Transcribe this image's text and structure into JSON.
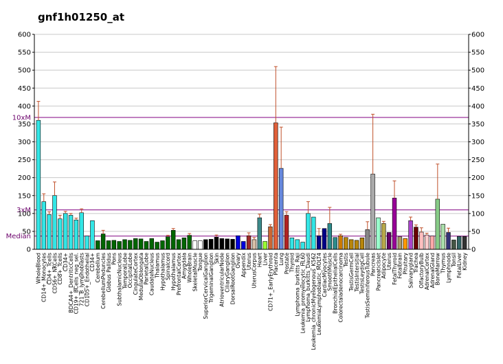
{
  "chart_data": {
    "type": "bar",
    "title": "gnf1h01250_at",
    "ylim": [
      0,
      600
    ],
    "y_ticks": [
      0,
      50,
      100,
      150,
      200,
      250,
      300,
      350,
      400,
      450,
      500,
      550,
      600
    ],
    "grid": true,
    "reference_lines": [
      {
        "label": "10xM",
        "value": 368
      },
      {
        "label": "3xM",
        "value": 110
      },
      {
        "label": "Median",
        "value": 37
      }
    ],
    "bars": [
      {
        "label": "WholeBlood",
        "value": 360,
        "err": 53,
        "color": "#33e6e6"
      },
      {
        "label": "CD14+_Monocytes",
        "value": 133,
        "err": 22,
        "color": "#33e6e6"
      },
      {
        "label": "CD4+_Tcells",
        "value": 97,
        "err": 8,
        "color": "#33e6e6"
      },
      {
        "label": "CD56+_NKCells",
        "value": 150,
        "err": 38,
        "color": "#33e6e6"
      },
      {
        "label": "CD8+_Tcells",
        "value": 85,
        "err": 10,
        "color": "#33e6e6"
      },
      {
        "label": "CD34+",
        "value": 100,
        "err": 6,
        "color": "#33e6e6"
      },
      {
        "label": "BDCA4+_DentriticCells",
        "value": 95,
        "err": 5,
        "color": "#33e6e6"
      },
      {
        "label": "CD19+_BCells_neg_sel.",
        "value": 82,
        "err": 5,
        "color": "#33e6e6"
      },
      {
        "label": "721_B_lymphoblasts",
        "value": 102,
        "err": 11,
        "color": "#33e6e6"
      },
      {
        "label": "CD105+_Endothelial",
        "value": 37,
        "err": 0,
        "color": "#33e6e6"
      },
      {
        "label": "CD34+",
        "value": 80,
        "err": 0,
        "color": "#33e6e6"
      },
      {
        "label": "Cerebellum",
        "value": 24,
        "err": 0,
        "color": "#006600"
      },
      {
        "label": "CerebellumPeduncles",
        "value": 43,
        "err": 10,
        "color": "#006600"
      },
      {
        "label": "Globus Pallidus",
        "value": 24,
        "err": 0,
        "color": "#006600"
      },
      {
        "label": "Pons",
        "value": 25,
        "err": 0,
        "color": "#006600"
      },
      {
        "label": "SubthalamicNucleus",
        "value": 22,
        "err": 0,
        "color": "#006600"
      },
      {
        "label": "TemporalLobe",
        "value": 27,
        "err": 0,
        "color": "#006600"
      },
      {
        "label": "OccipitalLobe",
        "value": 25,
        "err": 0,
        "color": "#006600"
      },
      {
        "label": "CingulateCortex",
        "value": 30,
        "err": 0,
        "color": "#006600"
      },
      {
        "label": "MedullaOblongata",
        "value": 29,
        "err": 0,
        "color": "#006600"
      },
      {
        "label": "ParietalLobe",
        "value": 22,
        "err": 0,
        "color": "#006600"
      },
      {
        "label": "CaudateNucleus",
        "value": 30,
        "err": 0,
        "color": "#006600"
      },
      {
        "label": "Thalamus",
        "value": 20,
        "err": 0,
        "color": "#006600"
      },
      {
        "label": "Hypothalamus",
        "value": 24,
        "err": 0,
        "color": "#006600"
      },
      {
        "label": "Spinalcord",
        "value": 35,
        "err": 4,
        "color": "#006600"
      },
      {
        "label": "Hypothalamus",
        "value": 53,
        "err": 5,
        "color": "#006600"
      },
      {
        "label": "PrefrontalCortex",
        "value": 27,
        "err": 0,
        "color": "#006600"
      },
      {
        "label": "Amygdala",
        "value": 32,
        "err": 0,
        "color": "#006600"
      },
      {
        "label": "WholeBrain",
        "value": 39,
        "err": 5,
        "color": "#006600"
      },
      {
        "label": "SkeletalMuscle",
        "value": 24,
        "err": 0,
        "color": "#ffffff"
      },
      {
        "label": "Tongue",
        "value": 24,
        "err": 0,
        "color": "#ffffff"
      },
      {
        "label": "SuperiorCervicalGanglion",
        "value": 27,
        "err": 0,
        "color": "#000000"
      },
      {
        "label": "TrigeminalGanglion",
        "value": 28,
        "err": 0,
        "color": "#000000"
      },
      {
        "label": "Skin",
        "value": 34,
        "err": 6,
        "color": "#000000"
      },
      {
        "label": "AtrioventricularNode",
        "value": 30,
        "err": 0,
        "color": "#000000"
      },
      {
        "label": "CiliaryGanglion",
        "value": 29,
        "err": 0,
        "color": "#000000"
      },
      {
        "label": "DorsalRootGanglion",
        "value": 28,
        "err": 0,
        "color": "#000000"
      },
      {
        "label": "Ovary",
        "value": 38,
        "err": 0,
        "color": "#0000dd"
      },
      {
        "label": "Appendix",
        "value": 22,
        "err": 0,
        "color": "#0000dd"
      },
      {
        "label": "Uterus",
        "value": 38,
        "err": 8,
        "color": "#9e2a2a"
      },
      {
        "label": "UterusCorpus",
        "value": 27,
        "err": 6,
        "color": "#d8c0a8"
      },
      {
        "label": "Heart",
        "value": 88,
        "err": 10,
        "color": "#3d8b8b"
      },
      {
        "label": "Liver",
        "value": 22,
        "err": 0,
        "color": "#99ff33"
      },
      {
        "label": "CD71+_EarlyErythroid",
        "value": 63,
        "err": 6,
        "color": "#cc6633"
      },
      {
        "label": "Placenta",
        "value": 353,
        "err": 157,
        "color": "#e0603a"
      },
      {
        "label": "Lung",
        "value": 226,
        "err": 115,
        "color": "#6688dd"
      },
      {
        "label": "Prostate",
        "value": 95,
        "err": 10,
        "color": "#b22222"
      },
      {
        "label": "Thyroid",
        "value": 32,
        "err": 0,
        "color": "#33e6e6"
      },
      {
        "label": "Lymphoma_burkitts_Raji",
        "value": 27,
        "err": 0,
        "color": "#33e6e6"
      },
      {
        "label": "Leukemia_promyelocytic_HL60",
        "value": 20,
        "err": 0,
        "color": "#33e6e6"
      },
      {
        "label": "Lymphoma_burkitts_Daudi",
        "value": 100,
        "err": 33,
        "color": "#33e6e6"
      },
      {
        "label": "Leukemia_chronicMyelogenous_K562",
        "value": 90,
        "err": 0,
        "color": "#33e6e6"
      },
      {
        "label": "LeukemiaLymphoblastic_MOLT4",
        "value": 38,
        "err": 20,
        "color": "#000088"
      },
      {
        "label": "CardiacMyocytes",
        "value": 58,
        "err": 0,
        "color": "#000088"
      },
      {
        "label": "SmoothMuscle",
        "value": 72,
        "err": 45,
        "color": "#2d8b8b"
      },
      {
        "label": "BronchialEpithelialCells",
        "value": 33,
        "err": 0,
        "color": "#2d8b8b"
      },
      {
        "label": "Colorectaladenocarcinoma",
        "value": 38,
        "err": 4,
        "color": "#cc7a00"
      },
      {
        "label": "Testis",
        "value": 33,
        "err": 0,
        "color": "#b8860b"
      },
      {
        "label": "TestisGermCell",
        "value": 27,
        "err": 0,
        "color": "#b8860b"
      },
      {
        "label": "TestisIntersitial",
        "value": 25,
        "err": 0,
        "color": "#b8860b"
      },
      {
        "label": "TestisLeydigCell",
        "value": 32,
        "err": 0,
        "color": "#b8860b"
      },
      {
        "label": "TestisSeminiferousTubule",
        "value": 55,
        "err": 22,
        "color": "#888888"
      },
      {
        "label": "Pancreas",
        "value": 210,
        "err": 167,
        "color": "#aaaaaa"
      },
      {
        "label": "PancreaticIslet",
        "value": 88,
        "err": 0,
        "color": "#99ffcc"
      },
      {
        "label": "Adipocyte",
        "value": 72,
        "err": 6,
        "color": "#b8a84a"
      },
      {
        "label": "Uterus",
        "value": 47,
        "err": 0,
        "color": "#660066"
      },
      {
        "label": "FetalThyroid",
        "value": 143,
        "err": 48,
        "color": "#990099"
      },
      {
        "label": "Fetalbrain",
        "value": 35,
        "err": 0,
        "color": "#aa9966"
      },
      {
        "label": "Pituitary",
        "value": 30,
        "err": 0,
        "color": "#ff9900"
      },
      {
        "label": "Salivarygland",
        "value": 80,
        "err": 10,
        "color": "#aa44cc"
      },
      {
        "label": "Trachea",
        "value": 62,
        "err": 6,
        "color": "#660000"
      },
      {
        "label": "OlfactoryBulb",
        "value": 48,
        "err": 12,
        "color": "#ffc0c0"
      },
      {
        "label": "AdrenalCortex",
        "value": 40,
        "err": 5,
        "color": "#ffcccc"
      },
      {
        "label": "AdrenalGland",
        "value": 37,
        "err": 0,
        "color": "#ffaaaa"
      },
      {
        "label": "BoneMarrow",
        "value": 140,
        "err": 98,
        "color": "#88cc88"
      },
      {
        "label": "Thymus",
        "value": 70,
        "err": 0,
        "color": "#aaddaa"
      },
      {
        "label": "Lymphnode",
        "value": 47,
        "err": 12,
        "color": "#333377"
      },
      {
        "label": "Tonsil",
        "value": 26,
        "err": 0,
        "color": "#445544"
      },
      {
        "label": "FetalLiver",
        "value": 36,
        "err": 0,
        "color": "#336666"
      },
      {
        "label": "Kidney",
        "value": 36,
        "err": 0,
        "color": "#333333"
      }
    ]
  }
}
